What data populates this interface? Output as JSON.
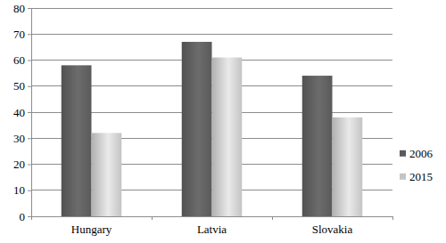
{
  "chart_data": {
    "type": "bar",
    "categories": [
      "Hungary",
      "Latvia",
      "Slovakia"
    ],
    "series": [
      {
        "name": "2006",
        "color": "#5a5a5a",
        "values": [
          58,
          67,
          54
        ]
      },
      {
        "name": "2015",
        "color": "#c4c4c4",
        "values": [
          32,
          61,
          38
        ]
      }
    ],
    "ylim": [
      0,
      80
    ],
    "yticks": [
      0,
      10,
      20,
      30,
      40,
      50,
      60,
      70,
      80
    ],
    "grid": true,
    "legend": "right"
  }
}
